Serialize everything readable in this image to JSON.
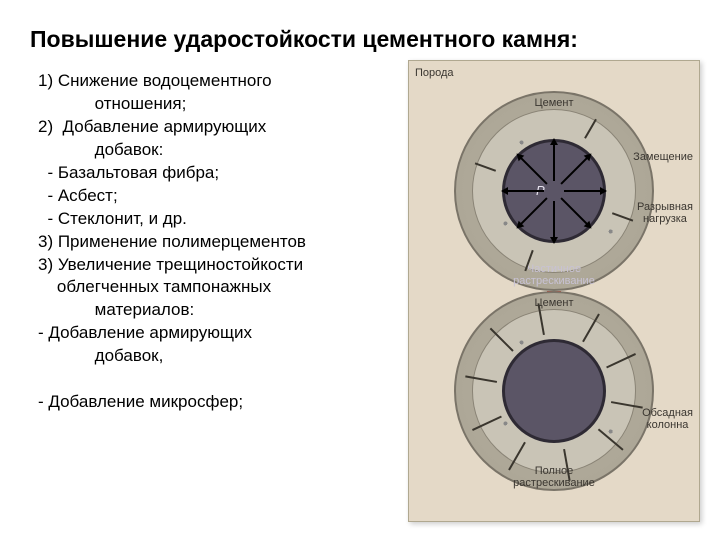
{
  "title": "Повышение ударостойкости цементного камня:",
  "list_lines": [
    "1) Снижение водоцементного",
    "            отношения;",
    "2)  Добавление армирующих",
    "            добавок:",
    "  - Базальтовая фибра;",
    "  - Асбест;",
    "  - Стеклонит, и др.",
    "3) Применение полимерцементов",
    "3) Увеличение трещиностойкости",
    "    облегченных тампонажных",
    "            материалов:",
    "- Добавление армирующих",
    "            добавок,",
    "",
    "- Добавление микросфер;"
  ],
  "diagram": {
    "panel_bg": "#e4d9c7",
    "rock_color": "#a8a292",
    "cement_color": "#c9c4b6",
    "casing_color": "#5b5566",
    "casing_border": "#2e2a34",
    "arrow_red": "#d93a2a",
    "labels": {
      "poroda": "Порода",
      "cement": "Цемент",
      "zameshenie": "Замещение",
      "razryv": "Разрывная\nнагрузка",
      "chastichnoe": "Частичное\nрастрескивание",
      "polnoe": "Полное\nрастрескивание",
      "obsadnaya": "Обсадная\nколонна",
      "p": "P"
    },
    "top": {
      "arrow_angles": [
        0,
        45,
        90,
        135,
        180,
        225,
        270,
        315
      ],
      "crack_angles": [
        20,
        110,
        200,
        300
      ],
      "crack_len": 22
    },
    "bottom": {
      "crack_angles": [
        10,
        40,
        80,
        120,
        155,
        190,
        225,
        260,
        300,
        335
      ],
      "crack_len": 32
    }
  }
}
